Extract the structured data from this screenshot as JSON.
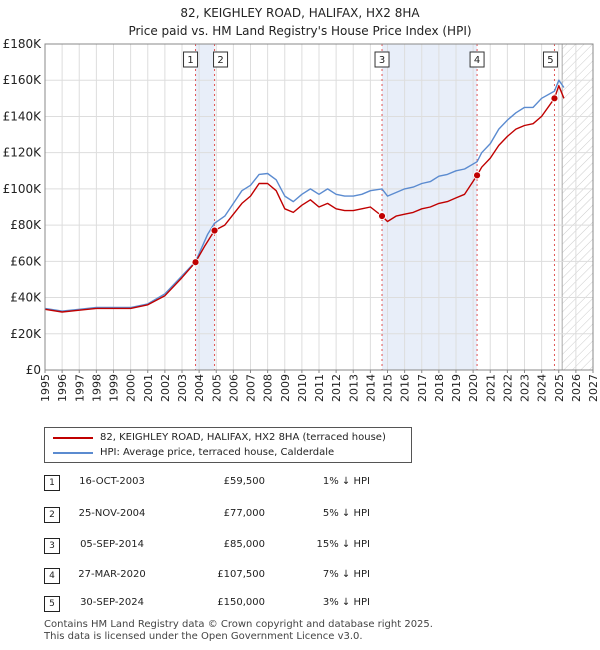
{
  "title": "82, KEIGHLEY ROAD, HALIFAX, HX2 8HA",
  "subtitle": "Price paid vs. HM Land Registry's House Price Index (HPI)",
  "colors": {
    "property": "#c00000",
    "hpi": "#5b8bd0",
    "shade": "#e8eef9",
    "vline": "#e05555",
    "grid": "#dddddd"
  },
  "legend": {
    "property_label": "82, KEIGHLEY ROAD, HALIFAX, HX2 8HA (terraced house)",
    "hpi_label": "HPI: Average price, terraced house, Calderdale"
  },
  "sales": [
    {
      "num": "1",
      "date": "16-OCT-2003",
      "price": "£59,500",
      "hpi": "1% ↓ HPI"
    },
    {
      "num": "2",
      "date": "25-NOV-2004",
      "price": "£77,000",
      "hpi": "5% ↓ HPI"
    },
    {
      "num": "3",
      "date": "05-SEP-2014",
      "price": "£85,000",
      "hpi": "15% ↓ HPI"
    },
    {
      "num": "4",
      "date": "27-MAR-2020",
      "price": "£107,500",
      "hpi": "7% ↓ HPI"
    },
    {
      "num": "5",
      "date": "30-SEP-2024",
      "price": "£150,000",
      "hpi": "3% ↓ HPI"
    }
  ],
  "footer": {
    "line1": "Contains HM Land Registry data © Crown copyright and database right 2025.",
    "line2": "This data is licensed under the Open Government Licence v3.0."
  },
  "chart_data": {
    "type": "line",
    "title": "82, KEIGHLEY ROAD, HALIFAX, HX2 8HA",
    "xlim": [
      1995,
      2027
    ],
    "ylim": [
      0,
      180000
    ],
    "x_ticks": [
      1995,
      1996,
      1997,
      1998,
      1999,
      2000,
      2001,
      2002,
      2003,
      2004,
      2005,
      2006,
      2007,
      2008,
      2009,
      2010,
      2011,
      2012,
      2013,
      2014,
      2015,
      2016,
      2017,
      2018,
      2019,
      2020,
      2021,
      2022,
      2023,
      2024,
      2025,
      2026,
      2027
    ],
    "y_ticks": [
      {
        "value": 0,
        "label": "£0"
      },
      {
        "value": 20000,
        "label": "£20K"
      },
      {
        "value": 40000,
        "label": "£40K"
      },
      {
        "value": 60000,
        "label": "£60K"
      },
      {
        "value": 80000,
        "label": "£80K"
      },
      {
        "value": 100000,
        "label": "£100K"
      },
      {
        "value": 120000,
        "label": "£120K"
      },
      {
        "value": 140000,
        "label": "£140K"
      },
      {
        "value": 160000,
        "label": "£160K"
      },
      {
        "value": 180000,
        "label": "£180K"
      }
    ],
    "shaded_spans": [
      [
        2003.79,
        2004.9
      ],
      [
        2014.68,
        2020.23
      ]
    ],
    "future_from": 2025.2,
    "series": [
      {
        "name": "HPI: Average price, terraced house, Calderdale",
        "points": [
          [
            1995,
            34000
          ],
          [
            1996,
            32500
          ],
          [
            1997,
            33500
          ],
          [
            1998,
            34500
          ],
          [
            1999,
            34500
          ],
          [
            2000,
            34500
          ],
          [
            2001,
            36500
          ],
          [
            2002,
            42000
          ],
          [
            2003,
            52000
          ],
          [
            2003.8,
            60000
          ],
          [
            2004.5,
            75000
          ],
          [
            2004.9,
            81000
          ],
          [
            2005.5,
            85000
          ],
          [
            2006,
            92000
          ],
          [
            2006.5,
            99000
          ],
          [
            2007,
            102000
          ],
          [
            2007.5,
            108000
          ],
          [
            2008,
            108500
          ],
          [
            2008.5,
            105000
          ],
          [
            2009,
            96000
          ],
          [
            2009.5,
            93000
          ],
          [
            2010,
            97000
          ],
          [
            2010.5,
            100000
          ],
          [
            2011,
            97000
          ],
          [
            2011.5,
            100000
          ],
          [
            2012,
            97000
          ],
          [
            2012.5,
            96000
          ],
          [
            2013,
            96000
          ],
          [
            2013.5,
            97000
          ],
          [
            2014,
            99000
          ],
          [
            2014.68,
            100000
          ],
          [
            2015,
            96000
          ],
          [
            2015.5,
            98000
          ],
          [
            2016,
            100000
          ],
          [
            2016.5,
            101000
          ],
          [
            2017,
            103000
          ],
          [
            2017.5,
            104000
          ],
          [
            2018,
            107000
          ],
          [
            2018.5,
            108000
          ],
          [
            2019,
            110000
          ],
          [
            2019.5,
            111000
          ],
          [
            2020.23,
            115000
          ],
          [
            2020.5,
            120000
          ],
          [
            2021,
            125000
          ],
          [
            2021.5,
            133000
          ],
          [
            2022,
            138000
          ],
          [
            2022.5,
            142000
          ],
          [
            2023,
            145000
          ],
          [
            2023.5,
            145000
          ],
          [
            2024,
            150000
          ],
          [
            2024.75,
            154000
          ],
          [
            2025,
            160000
          ],
          [
            2025.3,
            156000
          ]
        ]
      },
      {
        "name": "82, KEIGHLEY ROAD, HALIFAX, HX2 8HA (terraced house)",
        "points": [
          [
            1995,
            33500
          ],
          [
            1996,
            32000
          ],
          [
            1997,
            33000
          ],
          [
            1998,
            34000
          ],
          [
            1999,
            34000
          ],
          [
            2000,
            34000
          ],
          [
            2001,
            36000
          ],
          [
            2002,
            41000
          ],
          [
            2003,
            51000
          ],
          [
            2003.79,
            59500
          ],
          [
            2004.3,
            68000
          ],
          [
            2004.9,
            77000
          ],
          [
            2005.5,
            80000
          ],
          [
            2006,
            86000
          ],
          [
            2006.5,
            92000
          ],
          [
            2007,
            96000
          ],
          [
            2007.5,
            103000
          ],
          [
            2008,
            103000
          ],
          [
            2008.5,
            99000
          ],
          [
            2009,
            89000
          ],
          [
            2009.5,
            87000
          ],
          [
            2010,
            91000
          ],
          [
            2010.5,
            94000
          ],
          [
            2011,
            90000
          ],
          [
            2011.5,
            92000
          ],
          [
            2012,
            89000
          ],
          [
            2012.5,
            88000
          ],
          [
            2013,
            88000
          ],
          [
            2013.5,
            89000
          ],
          [
            2014,
            90000
          ],
          [
            2014.68,
            85000
          ],
          [
            2015,
            82000
          ],
          [
            2015.5,
            85000
          ],
          [
            2016,
            86000
          ],
          [
            2016.5,
            87000
          ],
          [
            2017,
            89000
          ],
          [
            2017.5,
            90000
          ],
          [
            2018,
            92000
          ],
          [
            2018.5,
            93000
          ],
          [
            2019,
            95000
          ],
          [
            2019.5,
            97000
          ],
          [
            2020.23,
            107500
          ],
          [
            2020.5,
            112000
          ],
          [
            2021,
            117000
          ],
          [
            2021.5,
            124000
          ],
          [
            2022,
            129000
          ],
          [
            2022.5,
            133000
          ],
          [
            2023,
            135000
          ],
          [
            2023.5,
            136000
          ],
          [
            2024,
            140000
          ],
          [
            2024.75,
            150000
          ],
          [
            2025,
            157000
          ],
          [
            2025.3,
            150000
          ]
        ]
      }
    ],
    "sale_points": [
      {
        "label": "1",
        "x": 2003.79,
        "y": 59500
      },
      {
        "label": "2",
        "x": 2004.9,
        "y": 77000
      },
      {
        "label": "3",
        "x": 2014.68,
        "y": 85000
      },
      {
        "label": "4",
        "x": 2020.23,
        "y": 107500
      },
      {
        "label": "5",
        "x": 2024.75,
        "y": 150000
      }
    ]
  }
}
